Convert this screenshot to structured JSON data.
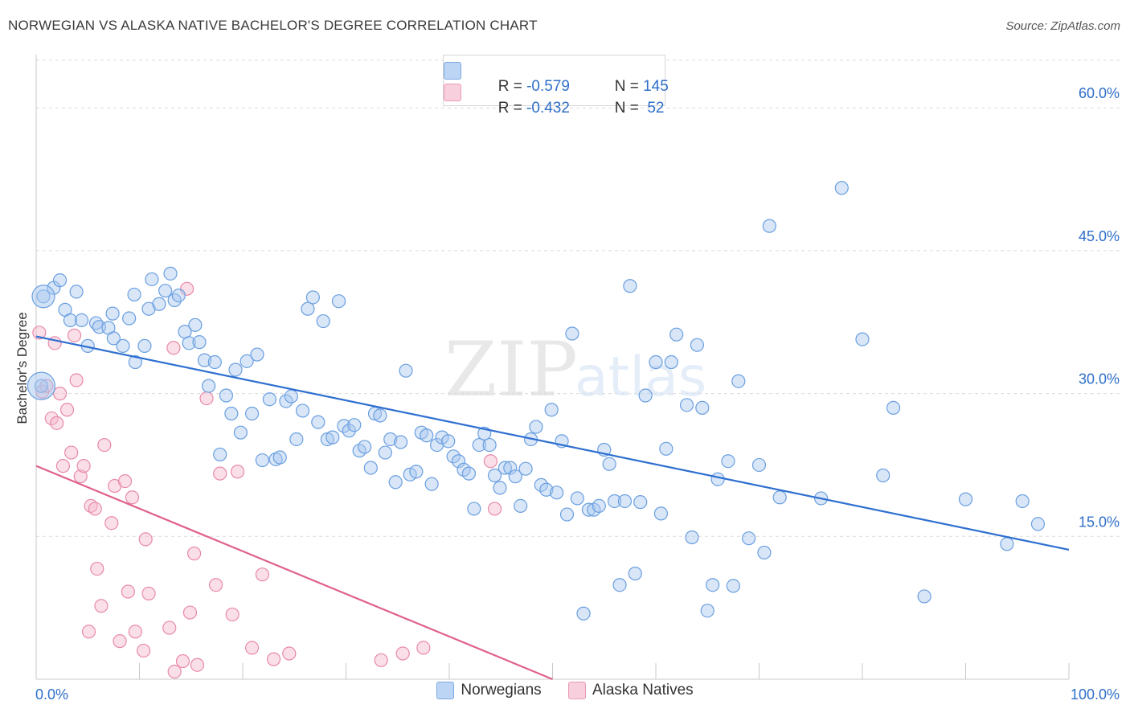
{
  "title": "NORWEGIAN VS ALASKA NATIVE BACHELOR'S DEGREE CORRELATION CHART",
  "source": "Source: ZipAtlas.com",
  "watermark": {
    "zip": "ZIP",
    "atlas": "atlas"
  },
  "legend": {
    "rows": [
      {
        "r_label": "R = ",
        "r_value": "-0.579",
        "n_label": "N = ",
        "n_value": "145",
        "color": "#a8c8f0"
      },
      {
        "r_label": "R = ",
        "r_value": "-0.432",
        "n_label": "N = ",
        "n_value": " 52",
        "color": "#f4b8cb"
      }
    ]
  },
  "bottom_legend": [
    {
      "label": "Norwegians",
      "color": "#a8c8f0"
    },
    {
      "label": "Alaska Natives",
      "color": "#f4b8cb"
    }
  ],
  "colors": {
    "blue_fill": "#a8c8f0",
    "blue_stroke": "#6a9fe0",
    "blue_line": "#2e6fd0",
    "pink_fill": "#f4b8cb",
    "pink_stroke": "#e88aa8",
    "pink_line": "#e0608f",
    "tick_label": "#2f6fc9",
    "grid": "#dcdcdc"
  },
  "chart_data": {
    "type": "scatter",
    "title": "NORWEGIAN VS ALASKA NATIVE BACHELOR'S DEGREE CORRELATION CHART",
    "xlabel": "",
    "ylabel": "Bachelor's Degree",
    "xlim": [
      0,
      100
    ],
    "ylim": [
      0,
      65
    ],
    "x_tick_labels": [
      "0.0%",
      "100.0%"
    ],
    "y_ticks": [
      15,
      30,
      45,
      60
    ],
    "y_tick_labels": [
      "15.0%",
      "30.0%",
      "45.0%",
      "60.0%"
    ],
    "grid": true,
    "legend_position": "top-center",
    "series": [
      {
        "name": "Norwegians",
        "trend": {
          "x": [
            0,
            100
          ],
          "y": [
            36.0,
            13.6
          ]
        },
        "points": [
          [
            0.7,
            40.2
          ],
          [
            0.5,
            30.8
          ],
          [
            1.7,
            41.1
          ],
          [
            2.3,
            41.9
          ],
          [
            3.9,
            40.7
          ],
          [
            2.8,
            38.8
          ],
          [
            3.3,
            37.7
          ],
          [
            4.4,
            37.7
          ],
          [
            5.8,
            37.4
          ],
          [
            5.0,
            35.0
          ],
          [
            6.1,
            37.0
          ],
          [
            7.0,
            36.9
          ],
          [
            7.5,
            35.8
          ],
          [
            7.4,
            38.4
          ],
          [
            8.4,
            35.0
          ],
          [
            9.0,
            37.9
          ],
          [
            9.5,
            40.4
          ],
          [
            9.6,
            33.3
          ],
          [
            10.5,
            35.0
          ],
          [
            10.9,
            38.9
          ],
          [
            11.2,
            42.0
          ],
          [
            11.9,
            39.4
          ],
          [
            12.5,
            40.8
          ],
          [
            13.0,
            42.6
          ],
          [
            13.4,
            39.8
          ],
          [
            13.8,
            40.3
          ],
          [
            14.4,
            36.5
          ],
          [
            14.8,
            35.3
          ],
          [
            15.4,
            37.2
          ],
          [
            15.8,
            35.4
          ],
          [
            16.3,
            33.5
          ],
          [
            16.7,
            30.8
          ],
          [
            17.3,
            33.3
          ],
          [
            17.8,
            23.6
          ],
          [
            18.4,
            29.8
          ],
          [
            18.9,
            27.9
          ],
          [
            19.3,
            32.5
          ],
          [
            19.8,
            25.9
          ],
          [
            20.4,
            33.4
          ],
          [
            20.9,
            27.9
          ],
          [
            21.4,
            34.1
          ],
          [
            21.9,
            23.0
          ],
          [
            22.6,
            29.4
          ],
          [
            23.2,
            23.1
          ],
          [
            23.6,
            23.3
          ],
          [
            24.2,
            29.2
          ],
          [
            24.7,
            29.7
          ],
          [
            25.2,
            25.2
          ],
          [
            25.8,
            28.2
          ],
          [
            26.3,
            38.9
          ],
          [
            26.8,
            40.1
          ],
          [
            27.3,
            27.0
          ],
          [
            27.8,
            37.6
          ],
          [
            28.2,
            25.2
          ],
          [
            28.7,
            25.4
          ],
          [
            29.3,
            39.7
          ],
          [
            29.8,
            26.6
          ],
          [
            30.3,
            26.1
          ],
          [
            30.8,
            26.7
          ],
          [
            31.3,
            24.0
          ],
          [
            31.8,
            24.4
          ],
          [
            32.4,
            22.2
          ],
          [
            32.8,
            27.9
          ],
          [
            33.3,
            27.7
          ],
          [
            33.8,
            23.8
          ],
          [
            34.3,
            25.2
          ],
          [
            34.8,
            20.7
          ],
          [
            35.3,
            24.9
          ],
          [
            35.8,
            32.4
          ],
          [
            36.2,
            21.5
          ],
          [
            36.8,
            21.8
          ],
          [
            37.3,
            25.9
          ],
          [
            37.8,
            25.6
          ],
          [
            38.3,
            20.5
          ],
          [
            38.8,
            24.6
          ],
          [
            39.3,
            25.4
          ],
          [
            39.9,
            25.0
          ],
          [
            40.4,
            23.4
          ],
          [
            40.9,
            22.9
          ],
          [
            41.4,
            22.0
          ],
          [
            41.9,
            21.6
          ],
          [
            42.4,
            17.9
          ],
          [
            42.9,
            24.6
          ],
          [
            43.4,
            25.8
          ],
          [
            43.9,
            24.6
          ],
          [
            44.4,
            21.4
          ],
          [
            44.9,
            20.1
          ],
          [
            45.4,
            22.2
          ],
          [
            45.9,
            22.2
          ],
          [
            46.4,
            21.3
          ],
          [
            46.9,
            18.2
          ],
          [
            47.4,
            22.1
          ],
          [
            47.9,
            25.2
          ],
          [
            48.4,
            26.5
          ],
          [
            48.9,
            20.4
          ],
          [
            49.4,
            19.9
          ],
          [
            49.9,
            28.3
          ],
          [
            50.4,
            19.6
          ],
          [
            50.9,
            25.0
          ],
          [
            51.4,
            17.3
          ],
          [
            51.9,
            36.3
          ],
          [
            52.4,
            19.0
          ],
          [
            53.0,
            6.9
          ],
          [
            53.5,
            17.8
          ],
          [
            54.0,
            17.8
          ],
          [
            54.5,
            18.2
          ],
          [
            55.0,
            24.1
          ],
          [
            55.5,
            22.6
          ],
          [
            56.0,
            18.7
          ],
          [
            56.5,
            9.9
          ],
          [
            57.0,
            18.7
          ],
          [
            57.5,
            41.3
          ],
          [
            58.0,
            11.1
          ],
          [
            58.5,
            18.6
          ],
          [
            59.0,
            29.8
          ],
          [
            60.0,
            33.3
          ],
          [
            60.5,
            17.4
          ],
          [
            61.0,
            24.2
          ],
          [
            61.5,
            33.3
          ],
          [
            62.0,
            36.2
          ],
          [
            63.0,
            28.8
          ],
          [
            63.5,
            14.9
          ],
          [
            64.0,
            35.1
          ],
          [
            64.5,
            28.5
          ],
          [
            65.0,
            7.2
          ],
          [
            65.5,
            9.9
          ],
          [
            66.0,
            21.0
          ],
          [
            67.0,
            22.9
          ],
          [
            67.5,
            9.8
          ],
          [
            68.0,
            31.3
          ],
          [
            69.0,
            14.8
          ],
          [
            70.0,
            22.5
          ],
          [
            70.5,
            13.3
          ],
          [
            71.0,
            47.6
          ],
          [
            72.0,
            19.1
          ],
          [
            76.0,
            19.0
          ],
          [
            78.0,
            51.6
          ],
          [
            80.0,
            35.7
          ],
          [
            82.0,
            21.4
          ],
          [
            83.0,
            28.5
          ],
          [
            86.0,
            8.7
          ],
          [
            90.0,
            18.9
          ],
          [
            94.0,
            14.2
          ],
          [
            95.5,
            18.7
          ],
          [
            97.0,
            16.3
          ]
        ]
      },
      {
        "name": "Alaska Natives",
        "trend": {
          "x": [
            0,
            50
          ],
          "y": [
            22.4,
            0.0
          ]
        },
        "points": [
          [
            0.3,
            36.4
          ],
          [
            0.6,
            30.2
          ],
          [
            1.0,
            30.8
          ],
          [
            1.5,
            27.4
          ],
          [
            1.8,
            35.3
          ],
          [
            2.0,
            26.9
          ],
          [
            2.3,
            30.0
          ],
          [
            2.6,
            22.4
          ],
          [
            3.0,
            28.3
          ],
          [
            3.4,
            23.8
          ],
          [
            3.7,
            36.1
          ],
          [
            3.9,
            31.4
          ],
          [
            4.3,
            21.3
          ],
          [
            4.6,
            22.4
          ],
          [
            5.1,
            5.0
          ],
          [
            5.3,
            18.2
          ],
          [
            5.7,
            17.9
          ],
          [
            5.9,
            11.6
          ],
          [
            6.3,
            7.7
          ],
          [
            6.6,
            24.6
          ],
          [
            7.3,
            16.4
          ],
          [
            7.6,
            20.3
          ],
          [
            8.1,
            4.0
          ],
          [
            8.6,
            20.8
          ],
          [
            8.9,
            9.2
          ],
          [
            9.3,
            19.1
          ],
          [
            9.6,
            5.0
          ],
          [
            10.4,
            3.0
          ],
          [
            10.6,
            14.7
          ],
          [
            10.9,
            9.0
          ],
          [
            12.9,
            5.4
          ],
          [
            13.3,
            34.8
          ],
          [
            13.4,
            0.8
          ],
          [
            14.2,
            1.9
          ],
          [
            14.6,
            41.0
          ],
          [
            14.9,
            7.0
          ],
          [
            15.3,
            13.2
          ],
          [
            15.6,
            1.5
          ],
          [
            16.5,
            29.5
          ],
          [
            17.4,
            9.9
          ],
          [
            17.8,
            21.6
          ],
          [
            19.0,
            6.8
          ],
          [
            19.5,
            21.8
          ],
          [
            20.9,
            3.3
          ],
          [
            21.9,
            11.0
          ],
          [
            23.0,
            2.1
          ],
          [
            24.5,
            2.7
          ],
          [
            33.4,
            2.0
          ],
          [
            35.5,
            2.7
          ],
          [
            37.5,
            3.3
          ],
          [
            44.0,
            22.9
          ],
          [
            44.4,
            17.9
          ]
        ]
      }
    ]
  }
}
